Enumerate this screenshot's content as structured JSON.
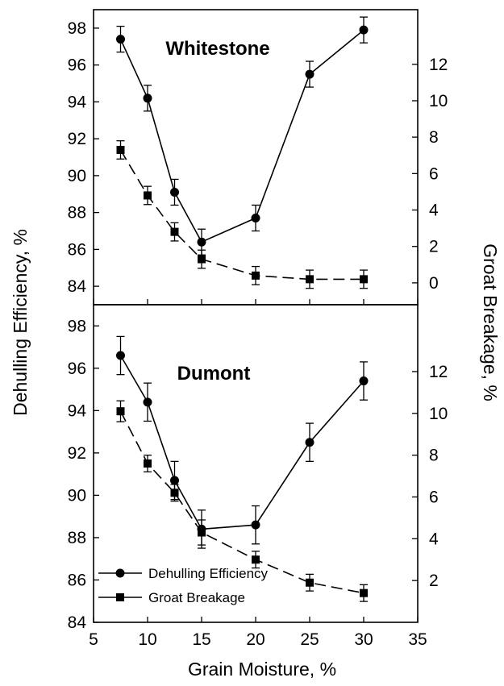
{
  "colors": {
    "line": "#000000",
    "background": "#ffffff"
  },
  "chart_data": {
    "type": "line",
    "xlabel": "Grain Moisture, %",
    "ylabel_left": "Dehulling Efficiency, %",
    "ylabel_right": "Groat Breakage, %",
    "xlim": [
      5,
      35
    ],
    "x_ticks": [
      "5",
      "10",
      "15",
      "20",
      "25",
      "30",
      "35"
    ],
    "legend": {
      "placement": "lower-left of bottom panel",
      "entries": [
        {
          "label": "Dehulling Efficiency",
          "marker": "circle"
        },
        {
          "label": "Groat Breakage",
          "marker": "square"
        }
      ]
    },
    "panels": [
      {
        "title": "Whitestone",
        "ylim_left": [
          83,
          99
        ],
        "left_ticks": [
          "84",
          "86",
          "88",
          "90",
          "92",
          "94",
          "96",
          "98"
        ],
        "ylim_right": [
          -1.2,
          15
        ],
        "right_ticks": [
          "0",
          "2",
          "4",
          "6",
          "8",
          "10",
          "12"
        ],
        "series": [
          {
            "name": "Dehulling Efficiency",
            "axis": "left",
            "marker": "circle",
            "linestyle": "solid",
            "x": [
              7.5,
              10,
              12.5,
              15,
              20,
              25,
              30
            ],
            "y": [
              97.4,
              94.2,
              89.1,
              86.4,
              87.7,
              95.5,
              97.9
            ],
            "err": [
              0.7,
              0.7,
              0.7,
              0.7,
              0.7,
              0.7,
              0.7
            ]
          },
          {
            "name": "Groat Breakage",
            "axis": "right",
            "marker": "square",
            "linestyle": "dashed",
            "x": [
              7.5,
              10,
              12.5,
              15,
              20,
              25,
              30
            ],
            "y": [
              7.3,
              4.8,
              2.8,
              1.3,
              0.4,
              0.2,
              0.2
            ],
            "err": [
              0.5,
              0.5,
              0.5,
              0.5,
              0.5,
              0.5,
              0.5
            ]
          }
        ]
      },
      {
        "title": "Dumont",
        "ylim_left": [
          84,
          99
        ],
        "left_ticks": [
          "84",
          "86",
          "88",
          "90",
          "92",
          "94",
          "96",
          "98"
        ],
        "ylim_right": [
          0,
          15.2
        ],
        "right_ticks": [
          "2",
          "4",
          "6",
          "8",
          "10",
          "12"
        ],
        "series": [
          {
            "name": "Dehulling Efficiency",
            "axis": "left",
            "marker": "circle",
            "linestyle": "solid",
            "x": [
              7.5,
              10,
              12.5,
              15,
              20,
              25,
              30
            ],
            "y": [
              96.6,
              94.4,
              90.7,
              88.4,
              88.6,
              92.5,
              95.4
            ],
            "err": [
              0.9,
              0.9,
              0.9,
              0.9,
              0.9,
              0.9,
              0.9
            ]
          },
          {
            "name": "Groat Breakage",
            "axis": "right",
            "marker": "square",
            "linestyle": "dashed",
            "x": [
              7.5,
              10,
              12.5,
              15,
              20,
              25,
              30
            ],
            "y": [
              10.1,
              7.6,
              6.2,
              4.3,
              3.0,
              1.9,
              1.4
            ],
            "err": [
              0.5,
              0.4,
              0.4,
              0.6,
              0.4,
              0.4,
              0.4
            ]
          }
        ]
      }
    ]
  }
}
